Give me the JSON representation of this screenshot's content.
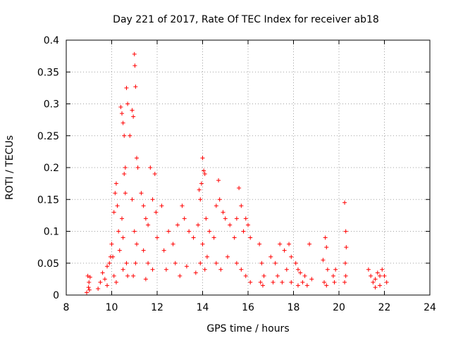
{
  "chart_data": {
    "type": "scatter",
    "title": "Day 221 of 2017, Rate Of TEC Index for receiver ab18",
    "xlabel": "GPS time / hours",
    "ylabel": "ROTI / TECUs",
    "xlim": [
      8,
      24
    ],
    "ylim": [
      0,
      0.4
    ],
    "xticks": [
      8,
      10,
      12,
      14,
      16,
      18,
      20,
      22,
      24
    ],
    "yticks": [
      0,
      0.05,
      0.1,
      0.15,
      0.2,
      0.25,
      0.3,
      0.35,
      0.4
    ],
    "xtick_labels": [
      "8",
      "10",
      "12",
      "14",
      "16",
      "18",
      "20",
      "22",
      "24"
    ],
    "ytick_labels": [
      "0",
      "0.05",
      "0.1",
      "0.15",
      "0.2",
      "0.25",
      "0.3",
      "0.35",
      "0.4"
    ],
    "grid": true,
    "legend": "none",
    "marker": "+",
    "color": "#ff0000",
    "series": [
      {
        "name": "ROTI",
        "points": [
          [
            8.9,
            0.004
          ],
          [
            8.95,
            0.03
          ],
          [
            9.0,
            0.02
          ],
          [
            9.05,
            0.028
          ],
          [
            8.98,
            0.012
          ],
          [
            9.02,
            0.008
          ],
          [
            9.4,
            0.01
          ],
          [
            9.5,
            0.02
          ],
          [
            9.6,
            0.035
          ],
          [
            9.7,
            0.025
          ],
          [
            9.8,
            0.045
          ],
          [
            9.9,
            0.05
          ],
          [
            9.95,
            0.06
          ],
          [
            9.8,
            0.015
          ],
          [
            10.0,
            0.08
          ],
          [
            10.05,
            0.06
          ],
          [
            10.1,
            0.13
          ],
          [
            10.15,
            0.16
          ],
          [
            10.2,
            0.175
          ],
          [
            10.25,
            0.14
          ],
          [
            10.3,
            0.1
          ],
          [
            10.35,
            0.07
          ],
          [
            10.1,
            0.03
          ],
          [
            10.2,
            0.02
          ],
          [
            10.4,
            0.295
          ],
          [
            10.45,
            0.285
          ],
          [
            10.5,
            0.27
          ],
          [
            10.55,
            0.25
          ],
          [
            10.6,
            0.2
          ],
          [
            10.65,
            0.325
          ],
          [
            10.7,
            0.3
          ],
          [
            10.55,
            0.19
          ],
          [
            10.6,
            0.16
          ],
          [
            10.45,
            0.12
          ],
          [
            10.5,
            0.09
          ],
          [
            10.65,
            0.05
          ],
          [
            10.7,
            0.03
          ],
          [
            10.5,
            0.04
          ],
          [
            10.8,
            0.25
          ],
          [
            10.9,
            0.29
          ],
          [
            10.95,
            0.28
          ],
          [
            11.0,
            0.378
          ],
          [
            11.02,
            0.36
          ],
          [
            11.05,
            0.327
          ],
          [
            11.1,
            0.215
          ],
          [
            11.15,
            0.2
          ],
          [
            10.9,
            0.15
          ],
          [
            11.0,
            0.1
          ],
          [
            11.1,
            0.08
          ],
          [
            11.05,
            0.05
          ],
          [
            10.95,
            0.03
          ],
          [
            11.3,
            0.16
          ],
          [
            11.4,
            0.14
          ],
          [
            11.5,
            0.12
          ],
          [
            11.6,
            0.11
          ],
          [
            11.7,
            0.2
          ],
          [
            11.8,
            0.15
          ],
          [
            11.9,
            0.19
          ],
          [
            11.95,
            0.13
          ],
          [
            11.4,
            0.07
          ],
          [
            11.6,
            0.05
          ],
          [
            11.8,
            0.04
          ],
          [
            11.5,
            0.025
          ],
          [
            12.0,
            0.09
          ],
          [
            12.2,
            0.14
          ],
          [
            12.3,
            0.07
          ],
          [
            12.5,
            0.1
          ],
          [
            12.7,
            0.08
          ],
          [
            12.9,
            0.11
          ],
          [
            13.1,
            0.14
          ],
          [
            13.2,
            0.12
          ],
          [
            13.4,
            0.1
          ],
          [
            13.6,
            0.09
          ],
          [
            13.8,
            0.11
          ],
          [
            12.4,
            0.04
          ],
          [
            12.8,
            0.05
          ],
          [
            13.0,
            0.03
          ],
          [
            13.3,
            0.045
          ],
          [
            13.7,
            0.035
          ],
          [
            13.85,
            0.165
          ],
          [
            13.9,
            0.15
          ],
          [
            13.95,
            0.175
          ],
          [
            14.0,
            0.215
          ],
          [
            14.05,
            0.195
          ],
          [
            14.1,
            0.19
          ],
          [
            14.15,
            0.12
          ],
          [
            14.0,
            0.08
          ],
          [
            14.2,
            0.06
          ],
          [
            13.9,
            0.05
          ],
          [
            14.1,
            0.04
          ],
          [
            14.3,
            0.1
          ],
          [
            14.5,
            0.09
          ],
          [
            14.6,
            0.14
          ],
          [
            14.7,
            0.18
          ],
          [
            14.75,
            0.15
          ],
          [
            14.9,
            0.13
          ],
          [
            15.0,
            0.12
          ],
          [
            15.2,
            0.11
          ],
          [
            14.6,
            0.05
          ],
          [
            14.8,
            0.04
          ],
          [
            15.1,
            0.06
          ],
          [
            15.4,
            0.09
          ],
          [
            15.5,
            0.12
          ],
          [
            15.6,
            0.168
          ],
          [
            15.7,
            0.14
          ],
          [
            15.8,
            0.1
          ],
          [
            15.9,
            0.12
          ],
          [
            16.0,
            0.11
          ],
          [
            16.1,
            0.09
          ],
          [
            15.5,
            0.05
          ],
          [
            15.7,
            0.04
          ],
          [
            15.9,
            0.03
          ],
          [
            16.1,
            0.02
          ],
          [
            16.5,
            0.08
          ],
          [
            16.6,
            0.05
          ],
          [
            16.7,
            0.03
          ],
          [
            16.55,
            0.02
          ],
          [
            16.65,
            0.015
          ],
          [
            17.0,
            0.06
          ],
          [
            17.2,
            0.05
          ],
          [
            17.4,
            0.08
          ],
          [
            17.6,
            0.07
          ],
          [
            17.8,
            0.08
          ],
          [
            17.9,
            0.06
          ],
          [
            17.1,
            0.02
          ],
          [
            17.3,
            0.03
          ],
          [
            17.5,
            0.02
          ],
          [
            17.7,
            0.04
          ],
          [
            17.9,
            0.02
          ],
          [
            18.1,
            0.05
          ],
          [
            18.2,
            0.04
          ],
          [
            18.3,
            0.035
          ],
          [
            18.5,
            0.03
          ],
          [
            18.7,
            0.08
          ],
          [
            18.8,
            0.025
          ],
          [
            18.2,
            0.015
          ],
          [
            18.4,
            0.02
          ],
          [
            18.6,
            0.015
          ],
          [
            19.3,
            0.055
          ],
          [
            19.4,
            0.09
          ],
          [
            19.45,
            0.075
          ],
          [
            19.5,
            0.04
          ],
          [
            19.35,
            0.02
          ],
          [
            19.45,
            0.015
          ],
          [
            19.75,
            0.03
          ],
          [
            19.8,
            0.02
          ],
          [
            19.85,
            0.04
          ],
          [
            20.25,
            0.145
          ],
          [
            20.3,
            0.1
          ],
          [
            20.32,
            0.075
          ],
          [
            20.28,
            0.05
          ],
          [
            20.3,
            0.03
          ],
          [
            20.25,
            0.02
          ],
          [
            21.3,
            0.04
          ],
          [
            21.4,
            0.03
          ],
          [
            21.5,
            0.02
          ],
          [
            21.6,
            0.025
          ],
          [
            21.7,
            0.035
          ],
          [
            21.8,
            0.03
          ],
          [
            21.9,
            0.04
          ],
          [
            22.0,
            0.03
          ],
          [
            22.1,
            0.02
          ],
          [
            21.8,
            0.015
          ],
          [
            21.6,
            0.012
          ]
        ]
      }
    ]
  }
}
